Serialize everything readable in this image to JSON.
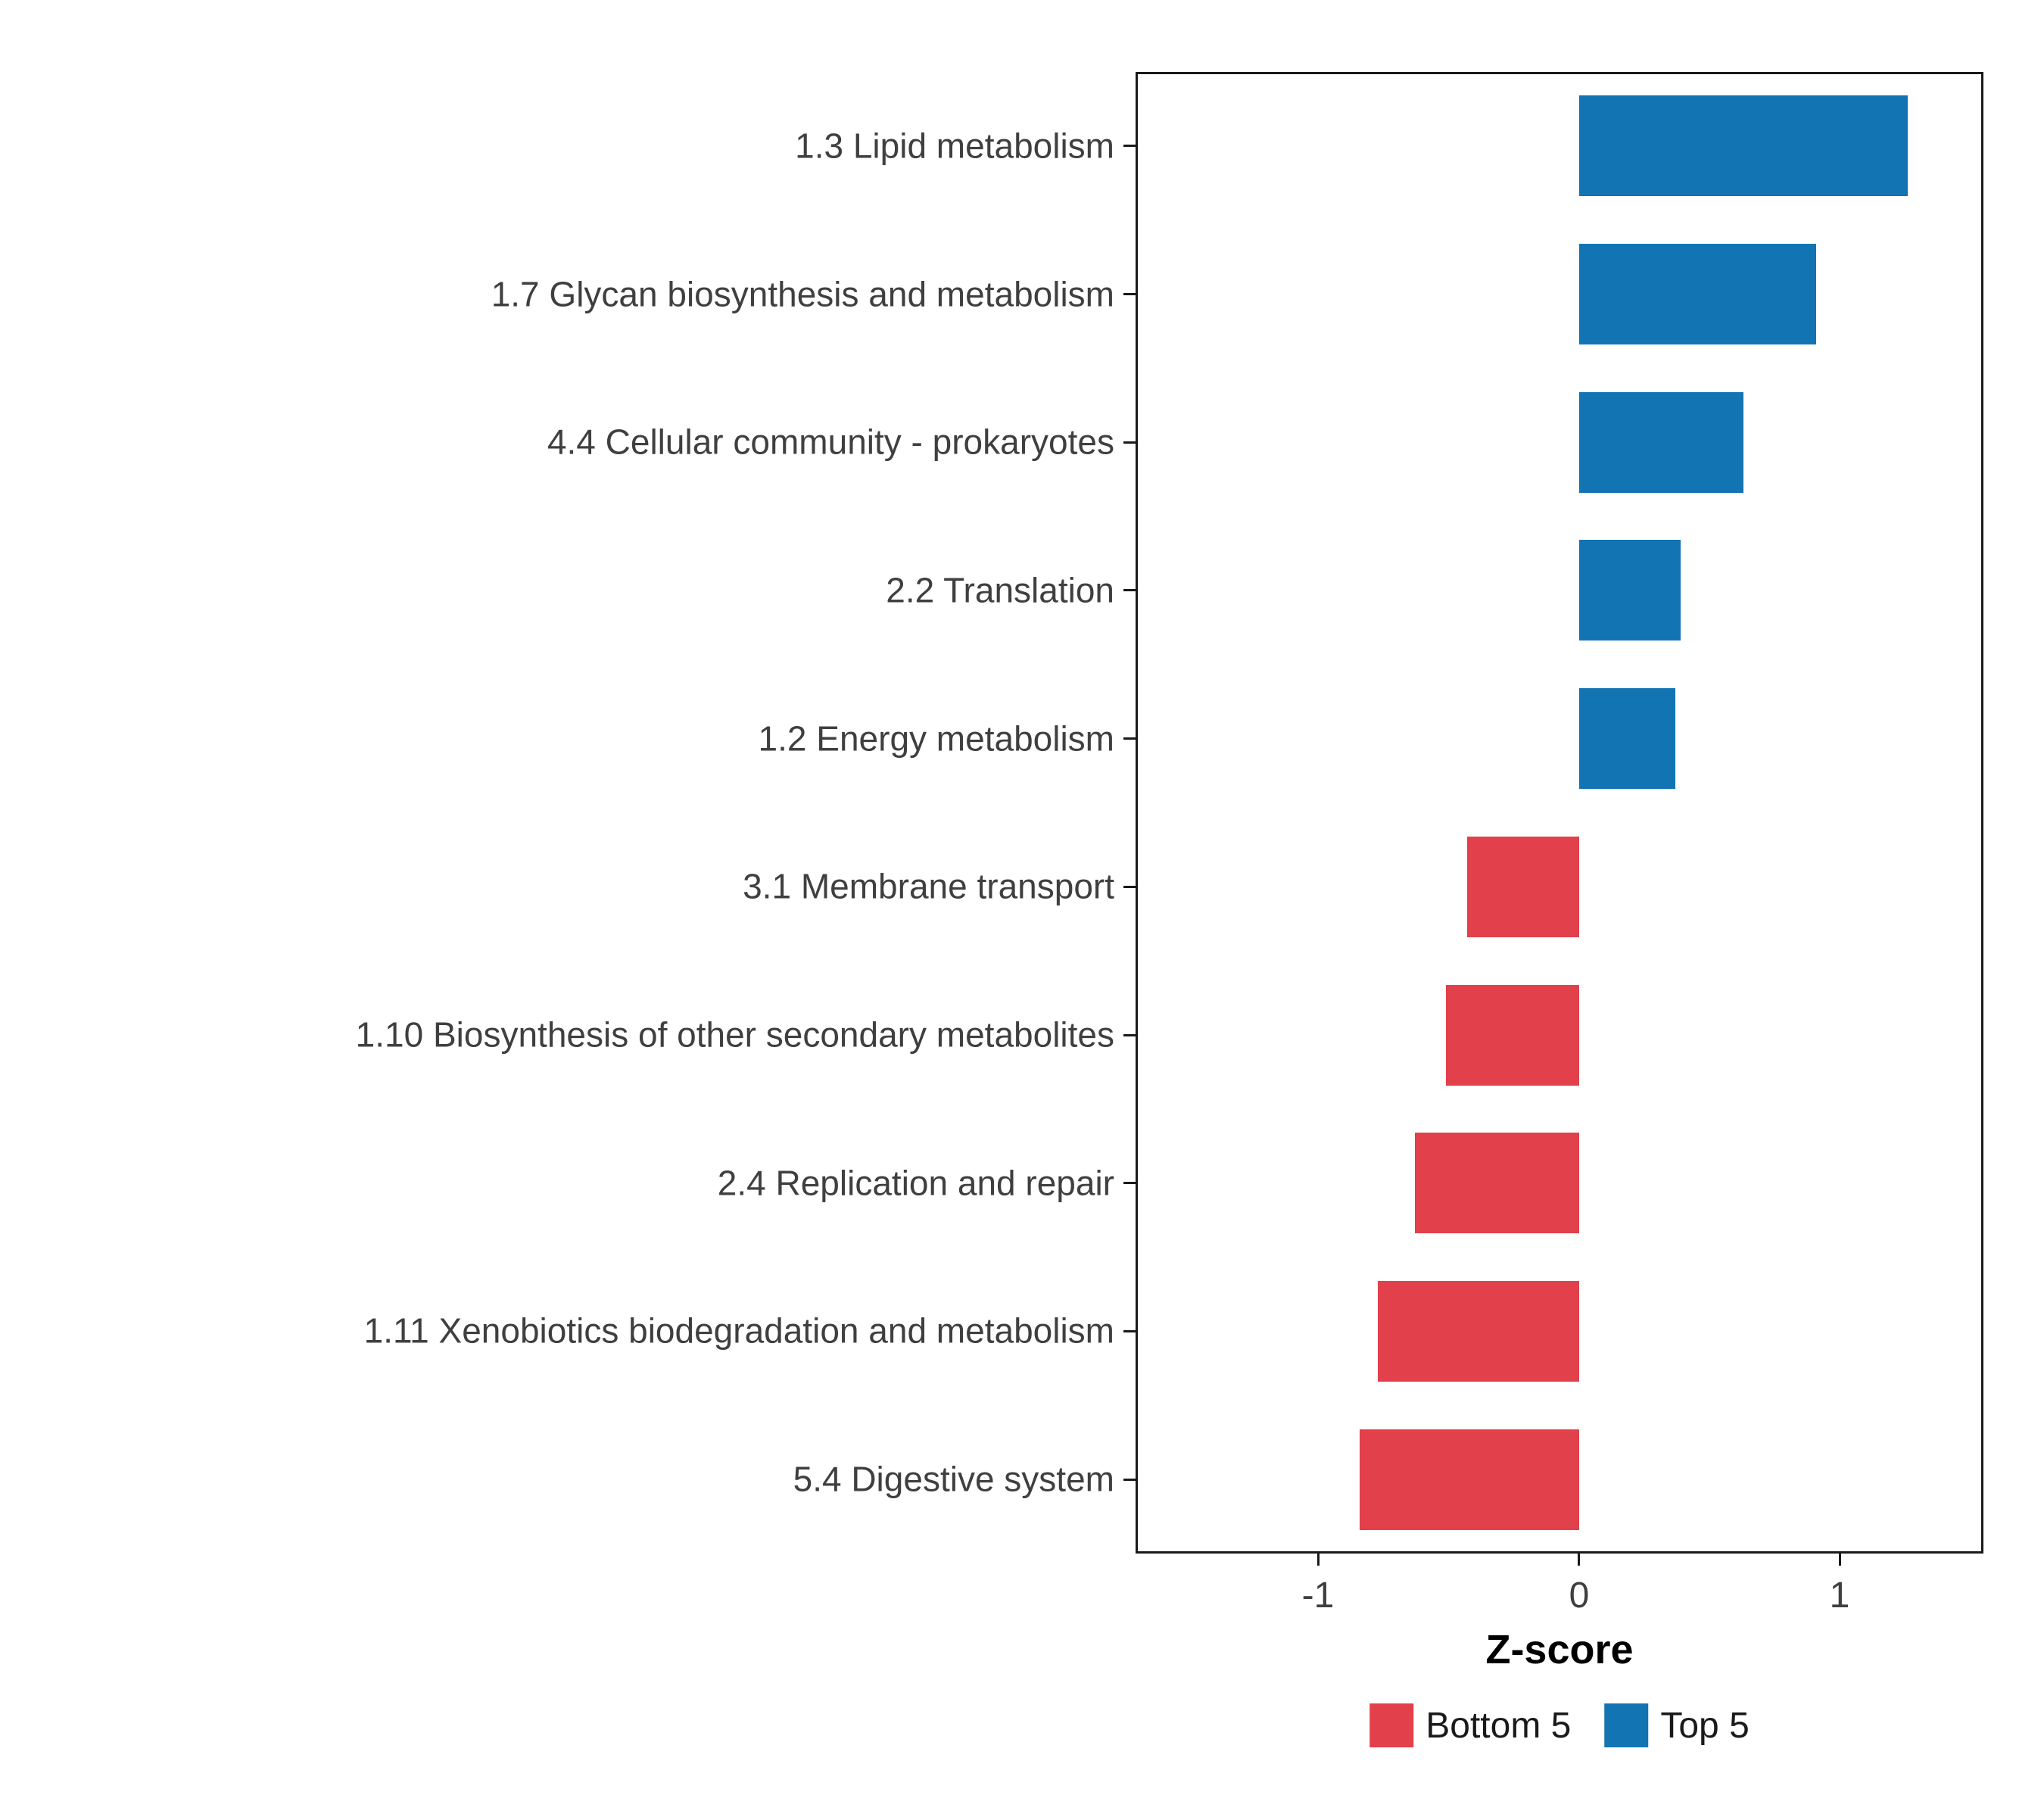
{
  "chart_data": {
    "type": "bar",
    "orientation": "horizontal",
    "title": "",
    "xlabel": "Z-score",
    "ylabel": "",
    "xlim": [
      -1.7,
      1.55
    ],
    "x_ticks": [
      -1,
      0,
      1
    ],
    "grid": false,
    "legend_position": "bottom",
    "categories": [
      "1.3 Lipid metabolism",
      "1.7 Glycan biosynthesis and metabolism",
      "4.4 Cellular community - prokaryotes",
      "2.2 Translation",
      "1.2 Energy metabolism",
      "3.1 Membrane transport",
      "1.10 Biosynthesis of other secondary metabolites",
      "2.4 Replication and repair",
      "1.11 Xenobiotics biodegradation and metabolism",
      "5.4 Digestive system"
    ],
    "values": [
      1.26,
      0.91,
      0.63,
      0.39,
      0.37,
      -0.43,
      -0.51,
      -0.63,
      -0.77,
      -0.84
    ],
    "groups": [
      "Top 5",
      "Top 5",
      "Top 5",
      "Top 5",
      "Top 5",
      "Bottom 5",
      "Bottom 5",
      "Bottom 5",
      "Bottom 5",
      "Bottom 5"
    ],
    "colors": {
      "Bottom 5": "#E2404A",
      "Top 5": "#1274B2"
    },
    "legend": [
      {
        "label": "Bottom 5",
        "color": "#E2404A"
      },
      {
        "label": "Top 5",
        "color": "#1274B2"
      }
    ]
  }
}
